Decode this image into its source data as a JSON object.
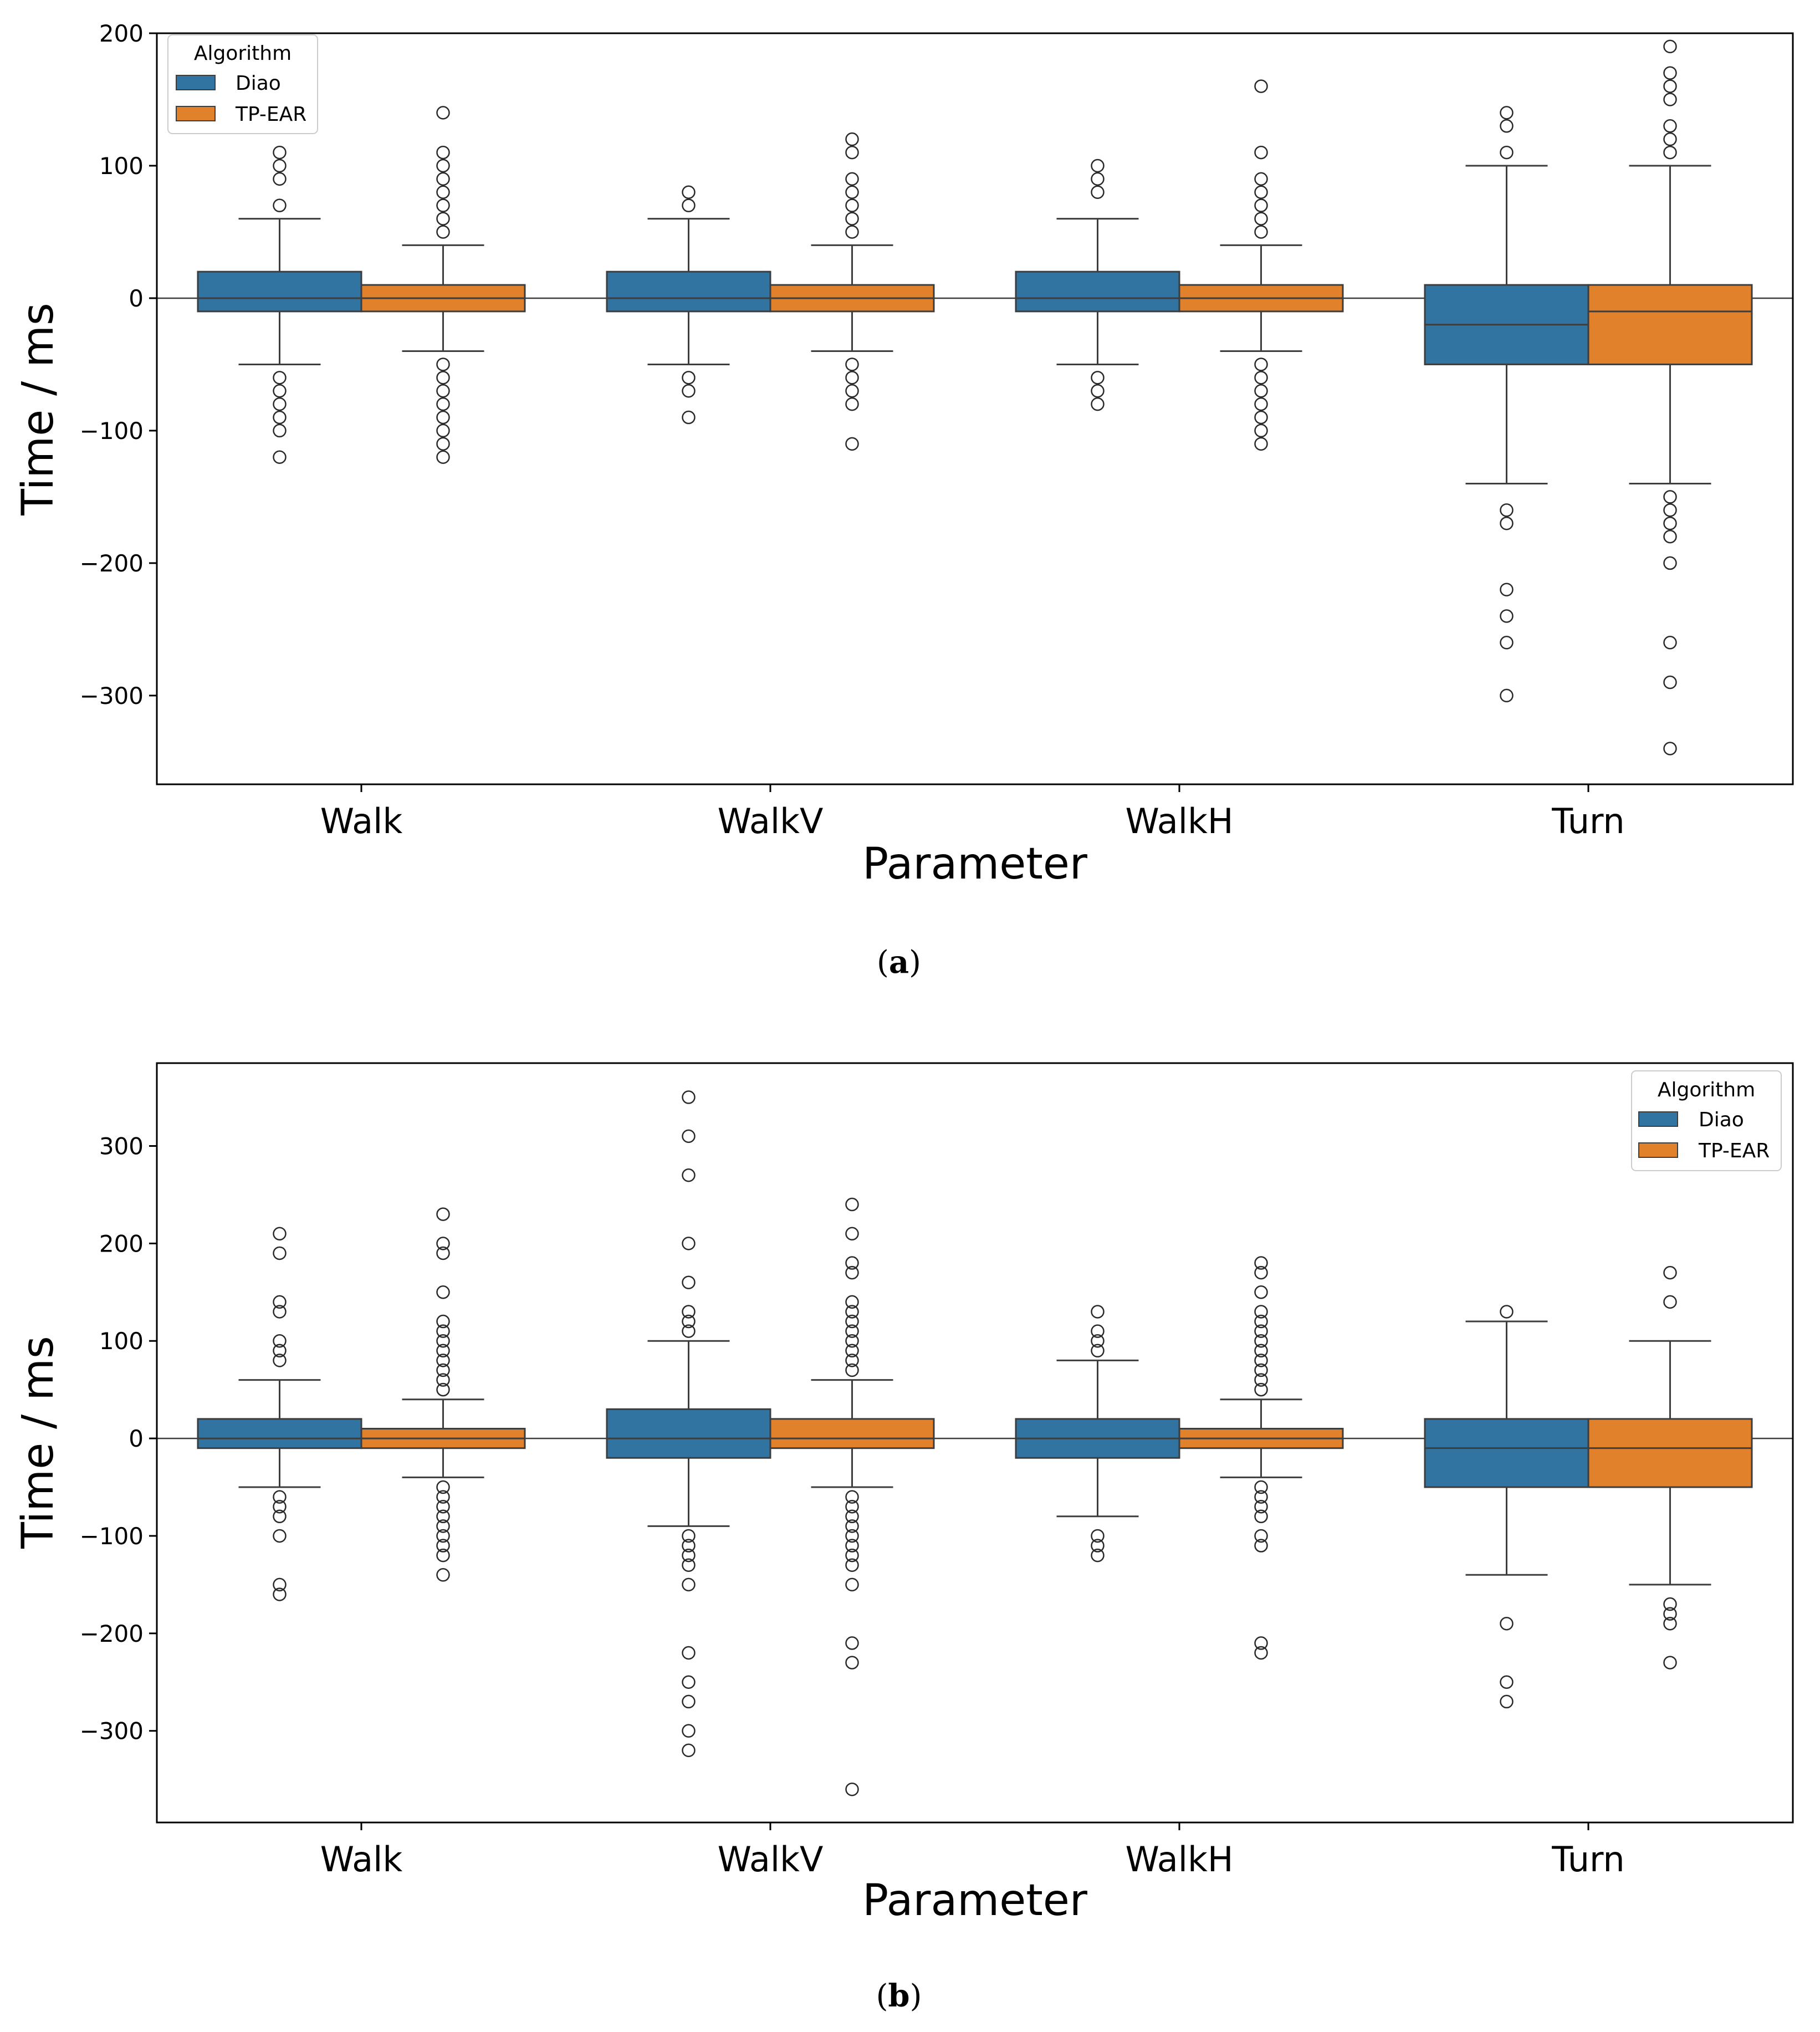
{
  "captions": {
    "a": "a",
    "b": "b"
  },
  "colors": {
    "Diao": "#3274a1",
    "TP-EAR": "#e1812c",
    "line": "#3d3d3d"
  },
  "chart_data": [
    {
      "type": "box",
      "panel": "a",
      "xlabel": "Parameter",
      "ylabel": "Time / ms",
      "categories": [
        "Walk",
        "WalkV",
        "WalkH",
        "Turn"
      ],
      "ylim": [
        -367,
        200
      ],
      "yticks": [
        200,
        100,
        0,
        -100,
        -200,
        -300
      ],
      "ytick_labels": [
        "200",
        "100",
        "0",
        "−100",
        "−200",
        "−300"
      ],
      "legend": {
        "title": "Algorithm",
        "position": "top-left",
        "entries": [
          "Diao",
          "TP-EAR"
        ]
      },
      "series": [
        {
          "name": "Diao",
          "boxes": [
            {
              "q1": -10,
              "median": 0,
              "q3": 20,
              "whisker_low": -50,
              "whisker_high": 60,
              "outliers": [
                110,
                100,
                90,
                70,
                -60,
                -70,
                -80,
                -90,
                -100,
                -120
              ]
            },
            {
              "q1": -10,
              "median": 0,
              "q3": 20,
              "whisker_low": -50,
              "whisker_high": 60,
              "outliers": [
                80,
                70,
                -60,
                -70,
                -90
              ]
            },
            {
              "q1": -10,
              "median": 0,
              "q3": 20,
              "whisker_low": -50,
              "whisker_high": 60,
              "outliers": [
                100,
                90,
                80,
                -60,
                -70,
                -80
              ]
            },
            {
              "q1": -50,
              "median": -20,
              "q3": 10,
              "whisker_low": -140,
              "whisker_high": 100,
              "outliers": [
                140,
                130,
                110,
                -160,
                -170,
                -220,
                -240,
                -260,
                -300
              ]
            }
          ]
        },
        {
          "name": "TP-EAR",
          "boxes": [
            {
              "q1": -10,
              "median": 0,
              "q3": 10,
              "whisker_low": -40,
              "whisker_high": 40,
              "outliers": [
                140,
                110,
                100,
                90,
                80,
                70,
                60,
                50,
                -50,
                -60,
                -70,
                -80,
                -90,
                -100,
                -110,
                -120
              ]
            },
            {
              "q1": -10,
              "median": 0,
              "q3": 10,
              "whisker_low": -40,
              "whisker_high": 40,
              "outliers": [
                120,
                110,
                90,
                80,
                70,
                60,
                50,
                -50,
                -60,
                -70,
                -80,
                -110
              ]
            },
            {
              "q1": -10,
              "median": 0,
              "q3": 10,
              "whisker_low": -40,
              "whisker_high": 40,
              "outliers": [
                160,
                110,
                90,
                80,
                70,
                60,
                50,
                -50,
                -60,
                -70,
                -80,
                -90,
                -100,
                -110
              ]
            },
            {
              "q1": -50,
              "median": -10,
              "q3": 10,
              "whisker_low": -140,
              "whisker_high": 100,
              "outliers": [
                190,
                170,
                160,
                150,
                130,
                120,
                110,
                -150,
                -160,
                -170,
                -180,
                -200,
                -260,
                -290,
                -340
              ]
            }
          ]
        }
      ]
    },
    {
      "type": "box",
      "panel": "b",
      "xlabel": "Parameter",
      "ylabel": "Time / ms",
      "categories": [
        "Walk",
        "WalkV",
        "WalkH",
        "Turn"
      ],
      "ylim": [
        -394,
        385
      ],
      "yticks": [
        300,
        200,
        100,
        0,
        -100,
        -200,
        -300
      ],
      "ytick_labels": [
        "300",
        "200",
        "100",
        "0",
        "−100",
        "−200",
        "−300"
      ],
      "legend": {
        "title": "Algorithm",
        "position": "top-right",
        "entries": [
          "Diao",
          "TP-EAR"
        ]
      },
      "series": [
        {
          "name": "Diao",
          "boxes": [
            {
              "q1": -10,
              "median": 0,
              "q3": 20,
              "whisker_low": -50,
              "whisker_high": 60,
              "outliers": [
                210,
                190,
                140,
                130,
                100,
                90,
                80,
                -60,
                -70,
                -80,
                -100,
                -150,
                -160
              ]
            },
            {
              "q1": -20,
              "median": 0,
              "q3": 30,
              "whisker_low": -90,
              "whisker_high": 100,
              "outliers": [
                350,
                310,
                270,
                200,
                160,
                130,
                120,
                110,
                -100,
                -110,
                -120,
                -130,
                -150,
                -220,
                -250,
                -270,
                -300,
                -320
              ]
            },
            {
              "q1": -20,
              "median": 0,
              "q3": 20,
              "whisker_low": -80,
              "whisker_high": 80,
              "outliers": [
                130,
                110,
                100,
                90,
                -100,
                -110,
                -120
              ]
            },
            {
              "q1": -50,
              "median": -10,
              "q3": 20,
              "whisker_low": -140,
              "whisker_high": 120,
              "outliers": [
                130,
                -190,
                -250,
                -270
              ]
            }
          ]
        },
        {
          "name": "TP-EAR",
          "boxes": [
            {
              "q1": -10,
              "median": 0,
              "q3": 10,
              "whisker_low": -40,
              "whisker_high": 40,
              "outliers": [
                230,
                200,
                190,
                150,
                120,
                110,
                100,
                90,
                80,
                70,
                60,
                50,
                -50,
                -60,
                -70,
                -80,
                -90,
                -100,
                -110,
                -120,
                -140
              ]
            },
            {
              "q1": -10,
              "median": 0,
              "q3": 20,
              "whisker_low": -50,
              "whisker_high": 60,
              "outliers": [
                240,
                210,
                180,
                170,
                140,
                130,
                120,
                110,
                100,
                90,
                80,
                70,
                -60,
                -70,
                -80,
                -90,
                -100,
                -110,
                -120,
                -130,
                -150,
                -210,
                -230,
                -360
              ]
            },
            {
              "q1": -10,
              "median": 0,
              "q3": 10,
              "whisker_low": -40,
              "whisker_high": 40,
              "outliers": [
                180,
                170,
                150,
                130,
                120,
                110,
                100,
                90,
                80,
                70,
                60,
                50,
                -50,
                -60,
                -70,
                -80,
                -100,
                -110,
                -210,
                -220
              ]
            },
            {
              "q1": -50,
              "median": -10,
              "q3": 20,
              "whisker_low": -150,
              "whisker_high": 100,
              "outliers": [
                170,
                140,
                -170,
                -180,
                -190,
                -230
              ]
            }
          ]
        }
      ]
    }
  ]
}
